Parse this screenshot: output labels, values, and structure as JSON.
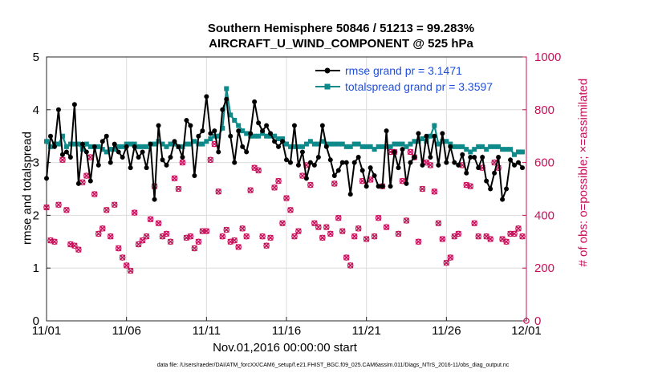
{
  "title_line1": "Southern Hemisphere 50846 / 51213 = 99.283%",
  "title_line2": "AIRCRAFT_U_WIND_COMPONENT @ 525 hPa",
  "xlabel": "Nov.01,2016 00:00:00 start",
  "footnote": "data file: /Users/raeder/DAI/ATM_forcXX/CAM6_setup/f.e21.FHIST_BGC.f09_025.CAM6assim.011/Diags_NTrS_2016-11/obs_diag_output.nc",
  "colors": {
    "rmse": "#000000",
    "spread": "#0f8a8a",
    "obs": "#c8105a",
    "legend_text": "#1f4fd8"
  },
  "chart_data": {
    "type": "line",
    "title": "Southern Hemisphere 50846 / 51213 = 99.283%",
    "subtitle": "AIRCRAFT_U_WIND_COMPONENT @ 525 hPa",
    "xlabel": "Nov.01,2016 00:00:00 start",
    "ylabel": "rmse and totalspread",
    "ylabel_right": "# of obs: o=possible; ×=assimilated",
    "xlim": [
      0,
      30
    ],
    "ylim": [
      0,
      5
    ],
    "ylim_right": [
      0,
      1000
    ],
    "xticks": [
      0,
      5,
      10,
      15,
      20,
      25,
      30
    ],
    "xtick_labels": [
      "11/01",
      "11/06",
      "11/11",
      "11/16",
      "11/21",
      "11/26",
      "12/01"
    ],
    "yticks": [
      0,
      1,
      2,
      3,
      4,
      5
    ],
    "yticks_right": [
      0,
      200,
      400,
      600,
      800,
      1000
    ],
    "legend_position": "top-right",
    "x": [
      0,
      0.25,
      0.5,
      0.75,
      1,
      1.25,
      1.5,
      1.75,
      2,
      2.25,
      2.5,
      2.75,
      3,
      3.25,
      3.5,
      3.75,
      4,
      4.25,
      4.5,
      4.75,
      5,
      5.25,
      5.5,
      5.75,
      6,
      6.25,
      6.5,
      6.75,
      7,
      7.25,
      7.5,
      7.75,
      8,
      8.25,
      8.5,
      8.75,
      9,
      9.25,
      9.5,
      9.75,
      10,
      10.25,
      10.5,
      10.75,
      11,
      11.25,
      11.5,
      11.75,
      12,
      12.25,
      12.5,
      12.75,
      13,
      13.25,
      13.5,
      13.75,
      14,
      14.25,
      14.5,
      14.75,
      15,
      15.25,
      15.5,
      15.75,
      16,
      16.25,
      16.5,
      16.75,
      17,
      17.25,
      17.5,
      17.75,
      18,
      18.25,
      18.5,
      18.75,
      19,
      19.25,
      19.5,
      19.75,
      20,
      20.25,
      20.5,
      20.75,
      21,
      21.25,
      21.5,
      21.75,
      22,
      22.25,
      22.5,
      22.75,
      23,
      23.25,
      23.5,
      23.75,
      24,
      24.25,
      24.5,
      24.75,
      25,
      25.25,
      25.5,
      25.75,
      26,
      26.25,
      26.5,
      26.75,
      27,
      27.25,
      27.5,
      27.75,
      28,
      28.25,
      28.5,
      28.75,
      29,
      29.25,
      29.5,
      29.75
    ],
    "series": [
      {
        "name": "rmse grand pr = 3.1471",
        "values": [
          2.7,
          3.5,
          3.3,
          4.0,
          3.15,
          3.2,
          3.1,
          4.1,
          2.6,
          3.35,
          3.2,
          2.65,
          3.3,
          2.95,
          3.4,
          3.5,
          3.0,
          3.35,
          3.2,
          3.1,
          3.3,
          2.9,
          3.3,
          3.1,
          3.2,
          2.9,
          3.35,
          2.3,
          3.7,
          3.05,
          2.95,
          3.1,
          3.4,
          3.3,
          3.1,
          3.8,
          3.7,
          2.75,
          3.5,
          3.6,
          4.25,
          3.55,
          3.6,
          3.2,
          4.0,
          4.2,
          3.5,
          3.0,
          3.6,
          3.3,
          3.2,
          3.55,
          4.15,
          3.75,
          3.6,
          3.7,
          3.55,
          3.4,
          3.3,
          3.4,
          3.05,
          3.0,
          3.7,
          2.95,
          3.2,
          2.7,
          3.0,
          2.95,
          3.1,
          3.7,
          3.3,
          3.05,
          2.75,
          2.85,
          3.0,
          3.0,
          2.4,
          3.0,
          3.1,
          2.85,
          2.55,
          2.9,
          2.75,
          2.55,
          2.55,
          3.6,
          2.55,
          3.2,
          2.9,
          3.25,
          2.6,
          3.0,
          3.1,
          3.55,
          2.95,
          3.5,
          3.1,
          3.5,
          2.95,
          3.55,
          3.0,
          3.3,
          3.0,
          2.95,
          3.15,
          2.8,
          3.1,
          3.1,
          2.9,
          3.1,
          2.65,
          2.5,
          2.8,
          3.1,
          2.3,
          2.5,
          3.05,
          2.95,
          3.0,
          2.9
        ]
      },
      {
        "name": "totalspread grand pr = 3.3597",
        "values": [
          3.4,
          3.3,
          3.35,
          3.35,
          3.5,
          3.3,
          3.35,
          3.35,
          3.35,
          3.25,
          3.35,
          3.3,
          3.3,
          3.3,
          3.25,
          3.2,
          3.25,
          3.25,
          3.3,
          3.3,
          3.35,
          3.35,
          3.35,
          3.3,
          3.3,
          3.3,
          3.35,
          3.35,
          3.4,
          3.35,
          3.3,
          3.35,
          3.35,
          3.3,
          3.3,
          3.35,
          3.35,
          3.4,
          3.35,
          3.35,
          3.4,
          3.45,
          3.5,
          3.5,
          3.65,
          4.4,
          3.9,
          3.8,
          3.7,
          3.6,
          3.55,
          3.5,
          3.5,
          3.5,
          3.55,
          3.5,
          3.5,
          3.5,
          3.45,
          3.45,
          3.35,
          3.3,
          3.3,
          3.3,
          3.3,
          3.35,
          3.4,
          3.35,
          3.35,
          3.4,
          3.35,
          3.35,
          3.35,
          3.35,
          3.35,
          3.3,
          3.3,
          3.35,
          3.35,
          3.3,
          3.3,
          3.3,
          3.25,
          3.3,
          3.3,
          3.3,
          3.3,
          3.35,
          3.35,
          3.35,
          3.3,
          3.35,
          3.4,
          3.4,
          3.45,
          3.4,
          3.5,
          3.7,
          3.35,
          3.4,
          3.4,
          3.35,
          3.3,
          3.3,
          3.3,
          3.25,
          3.2,
          3.25,
          3.3,
          3.3,
          3.25,
          3.3,
          3.3,
          3.3,
          3.25,
          3.25,
          3.25,
          3.15,
          3.2,
          3.2
        ]
      }
    ],
    "obs_possible": [
      430,
      305,
      300,
      440,
      610,
      420,
      290,
      285,
      270,
      525,
      550,
      620,
      480,
      330,
      350,
      420,
      320,
      440,
      275,
      240,
      210,
      190,
      410,
      290,
      305,
      320,
      385,
      510,
      370,
      320,
      330,
      300,
      540,
      500,
      600,
      315,
      320,
      275,
      300,
      340,
      340,
      610,
      670,
      490,
      320,
      345,
      300,
      305,
      280,
      350,
      320,
      495,
      580,
      570,
      320,
      285,
      315,
      505,
      530,
      370,
      465,
      420,
      320,
      340,
      550,
      590,
      515,
      370,
      355,
      315,
      355,
      330,
      520,
      390,
      340,
      240,
      210,
      320,
      350,
      530,
      310,
      535,
      320,
      390,
      510,
      355,
      640,
      640,
      330,
      530,
      380,
      640,
      620,
      300,
      500,
      600,
      590,
      490,
      370,
      310,
      220,
      240,
      320,
      330,
      590,
      515,
      510,
      370,
      320,
      580,
      320,
      310,
      600,
      580,
      310,
      300,
      330,
      330,
      350,
      320
    ],
    "obs_assimilated": [
      430,
      305,
      300,
      440,
      610,
      420,
      290,
      285,
      270,
      525,
      550,
      620,
      480,
      330,
      350,
      420,
      320,
      440,
      275,
      240,
      210,
      190,
      410,
      290,
      305,
      320,
      385,
      510,
      370,
      320,
      330,
      300,
      540,
      500,
      600,
      315,
      320,
      275,
      300,
      340,
      340,
      610,
      670,
      490,
      320,
      345,
      300,
      305,
      280,
      350,
      320,
      495,
      580,
      570,
      320,
      285,
      315,
      505,
      530,
      370,
      465,
      420,
      320,
      340,
      550,
      590,
      515,
      370,
      355,
      315,
      355,
      330,
      520,
      390,
      340,
      240,
      210,
      320,
      350,
      530,
      310,
      535,
      320,
      390,
      510,
      355,
      640,
      640,
      330,
      530,
      380,
      640,
      620,
      300,
      500,
      600,
      590,
      490,
      370,
      310,
      220,
      240,
      320,
      330,
      590,
      515,
      510,
      370,
      320,
      580,
      320,
      310,
      600,
      580,
      310,
      300,
      330,
      330,
      350,
      320
    ]
  }
}
